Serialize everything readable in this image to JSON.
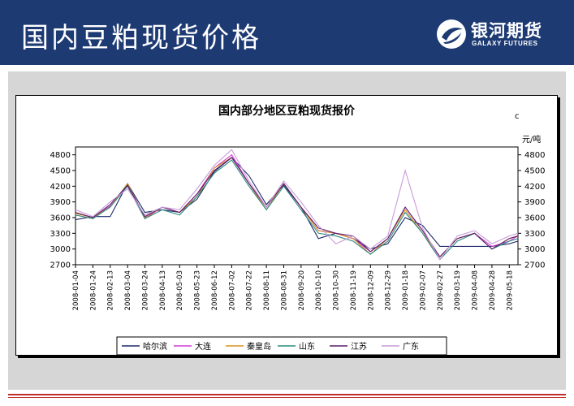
{
  "header": {
    "title": "国内豆粕现货价格"
  },
  "logo": {
    "name_cn": "银河期货",
    "name_en": "GALAXY FUTURES"
  },
  "chart_data": {
    "type": "line",
    "title": "国内部分地区豆粕现货报价",
    "corner_mark": "c",
    "y_unit": "元/吨",
    "ylim": [
      2700,
      4950
    ],
    "yticks": [
      2700,
      3000,
      3300,
      3600,
      3900,
      4200,
      4500,
      4800
    ],
    "grid": false,
    "legend_position": "bottom",
    "x_tick_labels": [
      "2008-01-04",
      "2008-01-24",
      "2008-02-13",
      "2008-03-04",
      "2008-03-24",
      "2008-04-13",
      "2008-05-03",
      "2008-05-23",
      "2008-06-12",
      "2008-07-02",
      "2008-07-22",
      "2008-08-11",
      "2008-08-31",
      "2008-09-20",
      "2008-10-10",
      "2008-10-30",
      "2008-11-19",
      "2008-12-09",
      "2008-12-29",
      "2009-01-18",
      "2009-02-07",
      "2009-02-27",
      "2009-03-19",
      "2009-04-08",
      "2009-04-28",
      "2009-05-18"
    ],
    "x": [
      "2008-01-04",
      "2008-01-24",
      "2008-02-13",
      "2008-03-04",
      "2008-03-24",
      "2008-04-13",
      "2008-05-03",
      "2008-05-23",
      "2008-06-12",
      "2008-07-02",
      "2008-07-22",
      "2008-08-11",
      "2008-08-31",
      "2008-09-20",
      "2008-10-10",
      "2008-10-30",
      "2008-11-19",
      "2008-12-09",
      "2008-12-29",
      "2009-01-18",
      "2009-02-07",
      "2009-02-27",
      "2009-03-19",
      "2009-04-08",
      "2009-04-28",
      "2009-05-18",
      "2009-05-28"
    ],
    "series": [
      {
        "name": "哈尔滨",
        "color": "#1f2a6b",
        "values": [
          3560,
          3620,
          3620,
          4250,
          3700,
          3750,
          3700,
          3950,
          4480,
          4750,
          4400,
          3850,
          4220,
          3800,
          3200,
          3300,
          3200,
          3000,
          3100,
          3600,
          3450,
          3050,
          3050,
          3050,
          3050,
          3100,
          3150
        ]
      },
      {
        "name": "大连",
        "color": "#d63bd6",
        "values": [
          3700,
          3600,
          3820,
          4200,
          3580,
          3800,
          3700,
          4050,
          4550,
          4800,
          4250,
          3800,
          4250,
          3800,
          3350,
          3300,
          3200,
          2950,
          3200,
          3800,
          3350,
          2850,
          3200,
          3300,
          3050,
          3150,
          3250
        ]
      },
      {
        "name": "秦皇岛",
        "color": "#e09020",
        "values": [
          3680,
          3600,
          3800,
          4250,
          3600,
          3800,
          3700,
          4000,
          4550,
          4750,
          4250,
          3750,
          4250,
          3800,
          3350,
          3300,
          3200,
          2900,
          3200,
          3750,
          3300,
          2850,
          3200,
          3300,
          3000,
          3200,
          3250
        ]
      },
      {
        "name": "山东",
        "color": "#2a8a80",
        "values": [
          3650,
          3580,
          3800,
          4200,
          3580,
          3750,
          3650,
          4000,
          4450,
          4700,
          4200,
          3750,
          4200,
          3750,
          3300,
          3250,
          3150,
          2900,
          3150,
          3700,
          3300,
          2800,
          3150,
          3300,
          3000,
          3150,
          3200
        ]
      },
      {
        "name": "江苏",
        "color": "#5a1f6e",
        "values": [
          3700,
          3600,
          3850,
          4220,
          3620,
          3800,
          3700,
          4050,
          4500,
          4750,
          4250,
          3800,
          4250,
          3800,
          3400,
          3300,
          3250,
          2950,
          3200,
          3800,
          3350,
          2850,
          3200,
          3300,
          3000,
          3200,
          3250
        ]
      },
      {
        "name": "广东",
        "color": "#c89ad9",
        "values": [
          3750,
          3620,
          3900,
          4150,
          3650,
          3800,
          3750,
          4150,
          4600,
          4900,
          4300,
          3800,
          4300,
          3900,
          3450,
          3100,
          3250,
          3000,
          3250,
          4500,
          3400,
          2800,
          3250,
          3350,
          3100,
          3250,
          3300
        ]
      }
    ]
  }
}
